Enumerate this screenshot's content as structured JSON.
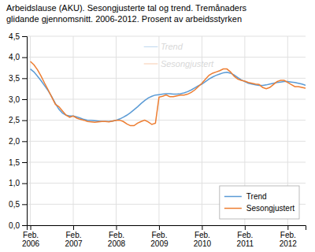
{
  "chart_data": {
    "type": "line",
    "title": "Arbeidslause (AKU). Sesongjusterte tal og trend. Tremånaders\nglidande gjennomsnitt. 2006-2012. Prosent av arbeidsstyrken",
    "categories": [
      "Feb.\n2006",
      null,
      null,
      null,
      null,
      null,
      null,
      null,
      null,
      null,
      null,
      null,
      "Feb.\n2007",
      null,
      null,
      null,
      null,
      null,
      null,
      null,
      null,
      null,
      null,
      null,
      "Feb.\n2008",
      null,
      null,
      null,
      null,
      null,
      null,
      null,
      null,
      null,
      null,
      null,
      "Feb.\n2009",
      null,
      null,
      null,
      null,
      null,
      null,
      null,
      null,
      null,
      null,
      null,
      "Feb.\n2010",
      null,
      null,
      null,
      null,
      null,
      null,
      null,
      null,
      null,
      null,
      null,
      "Feb.\n2011",
      null,
      null,
      null,
      null,
      null,
      null,
      null,
      null,
      null,
      null,
      null,
      "Feb.\n2012",
      null,
      null,
      null,
      null,
      null
    ],
    "series": [
      {
        "name": "Trend",
        "color": "#5b9bd5",
        "values": [
          3.72,
          3.65,
          3.55,
          3.44,
          3.32,
          3.2,
          3.06,
          2.9,
          2.76,
          2.67,
          2.62,
          2.6,
          2.6,
          2.58,
          2.55,
          2.52,
          2.5,
          2.5,
          2.49,
          2.48,
          2.47,
          2.47,
          2.47,
          2.48,
          2.5,
          2.53,
          2.57,
          2.62,
          2.68,
          2.75,
          2.82,
          2.9,
          2.97,
          3.03,
          3.07,
          3.1,
          3.11,
          3.12,
          3.13,
          3.13,
          3.12,
          3.12,
          3.13,
          3.15,
          3.18,
          3.22,
          3.27,
          3.32,
          3.36,
          3.42,
          3.48,
          3.53,
          3.57,
          3.6,
          3.63,
          3.64,
          3.62,
          3.58,
          3.52,
          3.46,
          3.42,
          3.38,
          3.36,
          3.34,
          3.33,
          3.33,
          3.34,
          3.36,
          3.38,
          3.4,
          3.41,
          3.42,
          3.42,
          3.41,
          3.4,
          3.38,
          3.36,
          3.33
        ]
      },
      {
        "name": "Sesongjustert",
        "color": "#ed7d31",
        "values": [
          3.9,
          3.82,
          3.7,
          3.55,
          3.38,
          3.22,
          3.05,
          2.88,
          2.82,
          2.72,
          2.62,
          2.57,
          2.6,
          2.55,
          2.52,
          2.5,
          2.47,
          2.46,
          2.45,
          2.46,
          2.47,
          2.47,
          2.46,
          2.48,
          2.5,
          2.5,
          2.47,
          2.41,
          2.37,
          2.37,
          2.43,
          2.47,
          2.5,
          2.46,
          2.4,
          2.43,
          3.05,
          3.07,
          3.1,
          3.06,
          3.06,
          3.08,
          3.1,
          3.1,
          3.12,
          3.16,
          3.22,
          3.3,
          3.38,
          3.48,
          3.57,
          3.62,
          3.65,
          3.68,
          3.72,
          3.72,
          3.65,
          3.55,
          3.48,
          3.45,
          3.43,
          3.4,
          3.38,
          3.36,
          3.35,
          3.28,
          3.25,
          3.28,
          3.35,
          3.42,
          3.45,
          3.45,
          3.4,
          3.35,
          3.3,
          3.3,
          3.28,
          3.26
        ]
      }
    ],
    "ylim": [
      0.0,
      4.5
    ],
    "yticks": [
      {
        "value": 0.0,
        "label": "0,0"
      },
      {
        "value": 0.5,
        "label": "0,5"
      },
      {
        "value": 1.0,
        "label": "1,0"
      },
      {
        "value": 1.5,
        "label": "1,5"
      },
      {
        "value": 2.0,
        "label": "2,0"
      },
      {
        "value": 2.5,
        "label": "2,5"
      },
      {
        "value": 3.0,
        "label": "3,0"
      },
      {
        "value": 3.5,
        "label": "3,5"
      },
      {
        "value": 4.0,
        "label": "4,0"
      },
      {
        "value": 4.5,
        "label": "4,5"
      }
    ],
    "grid": true,
    "legend": "lower right",
    "annotations": [
      {
        "text": "Trend",
        "color": "#d8d8d8"
      },
      {
        "text": "Sesongjustert",
        "color": "#d8d8d8"
      }
    ]
  }
}
